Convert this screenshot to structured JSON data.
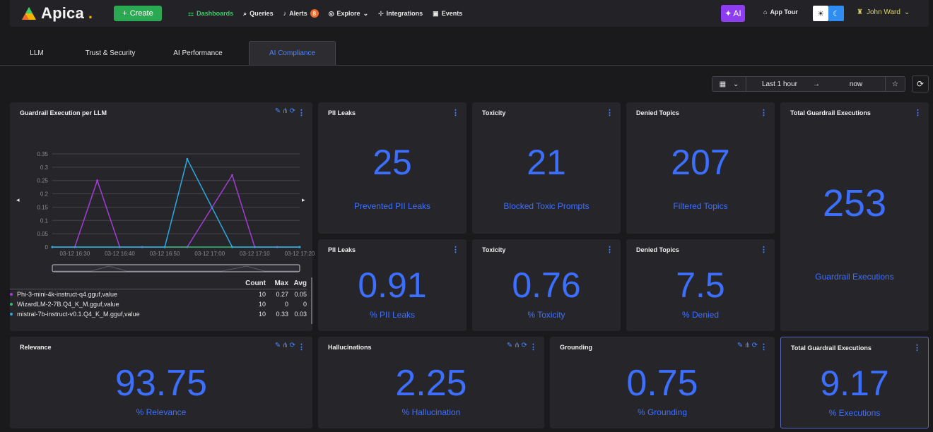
{
  "header": {
    "logo_text": "Apica",
    "create_label": "Create",
    "nav": [
      {
        "label": "Dashboards",
        "icon": "dashboards-icon",
        "active": true
      },
      {
        "label": "Queries",
        "icon": "search-icon"
      },
      {
        "label": "Alerts",
        "icon": "bell-icon",
        "badge": "8"
      },
      {
        "label": "Explore",
        "icon": "compass-icon"
      },
      {
        "label": "Integrations",
        "icon": "integrations-icon"
      },
      {
        "label": "Events",
        "icon": "events-icon"
      }
    ],
    "ai_label": "AI",
    "app_tour_label": "App Tour",
    "user_name": "John Ward"
  },
  "tabs": [
    {
      "label": "LLM"
    },
    {
      "label": "Trust & Security"
    },
    {
      "label": "AI Performance"
    },
    {
      "label": "AI Compliance",
      "active": true
    }
  ],
  "timebar": {
    "range": "Last 1 hour",
    "arrow": "→",
    "to": "now"
  },
  "panels": {
    "guardrail_chart": {
      "title": "Guardrail Execution per LLM"
    },
    "pii_leaks": {
      "title": "PII Leaks",
      "value": "25",
      "label": "Prevented PII Leaks"
    },
    "toxicity": {
      "title": "Toxicity",
      "value": "21",
      "label": "Blocked Toxic Prompts"
    },
    "denied_topics": {
      "title": "Denied Topics",
      "value": "207",
      "label": "Filtered Topics"
    },
    "total_exec": {
      "title": "Total Guardrail Executions",
      "value": "253",
      "label": "Guardrail Executions"
    },
    "pii_pct": {
      "title": "PII Leaks",
      "value": "0.91",
      "label": "% PII Leaks"
    },
    "tox_pct": {
      "title": "Toxicity",
      "value": "0.76",
      "label": "% Toxicity"
    },
    "denied_pct": {
      "title": "Denied Topics",
      "value": "7.5",
      "label": "% Denied"
    },
    "relevance": {
      "title": "Relevance",
      "value": "93.75",
      "label": "% Relevance"
    },
    "hallucinations": {
      "title": "Hallucinations",
      "value": "2.25",
      "label": "% Hallucination"
    },
    "grounding": {
      "title": "Grounding",
      "value": "0.75",
      "label": "% Grounding"
    },
    "total_pct": {
      "title": "Total Guardrail Executions",
      "value": "9.17",
      "label": "% Executions"
    }
  },
  "legend": {
    "headers": [
      "Count",
      "Max",
      "Avg"
    ],
    "rows": [
      {
        "name": "Phi-3-mini-4k-instruct-q4.gguf,value",
        "count": "10",
        "max": "0.27",
        "avg": "0.05",
        "color": "#a23cd4"
      },
      {
        "name": "WizardLM-2-7B.Q4_K_M.gguf,value",
        "count": "10",
        "max": "0",
        "avg": "0",
        "color": "#2fbf71"
      },
      {
        "name": "mistral-7b-instruct-v0.1.Q4_K_M.gguf,value",
        "count": "10",
        "max": "0.33",
        "avg": "0.03",
        "color": "#2aa8e0"
      }
    ]
  },
  "chart_data": {
    "type": "line",
    "x": [
      "03-12 16:30",
      "03-12 16:40",
      "03-12 16:50",
      "03-12 17:00",
      "03-12 17:10",
      "03-12 17:20"
    ],
    "ylim": [
      0,
      0.35
    ],
    "yticks": [
      "0",
      "0.05",
      "0.1",
      "0.15",
      "0.2",
      "0.25",
      "0.3",
      "0.35"
    ],
    "series": [
      {
        "name": "Phi-3-mini-4k-instruct-q4.gguf,value",
        "color": "#a23cd4",
        "points": [
          [
            0.0,
            0
          ],
          [
            0.5,
            0
          ],
          [
            1.0,
            0.25
          ],
          [
            1.5,
            0
          ],
          [
            2.0,
            0
          ],
          [
            2.5,
            0
          ],
          [
            3.0,
            0
          ],
          [
            4.0,
            0.27
          ],
          [
            4.5,
            0
          ],
          [
            5.0,
            0
          ],
          [
            5.5,
            0
          ]
        ]
      },
      {
        "name": "WizardLM-2-7B.Q4_K_M.gguf,value",
        "color": "#2fbf71",
        "points": [
          [
            0.0,
            0
          ],
          [
            5.5,
            0
          ]
        ]
      },
      {
        "name": "mistral-7b-instruct-v0.1.Q4_K_M.gguf,value",
        "color": "#2aa8e0",
        "points": [
          [
            0.0,
            0
          ],
          [
            2.5,
            0
          ],
          [
            3.0,
            0.33
          ],
          [
            4.0,
            0
          ],
          [
            5.5,
            0
          ]
        ]
      }
    ]
  }
}
